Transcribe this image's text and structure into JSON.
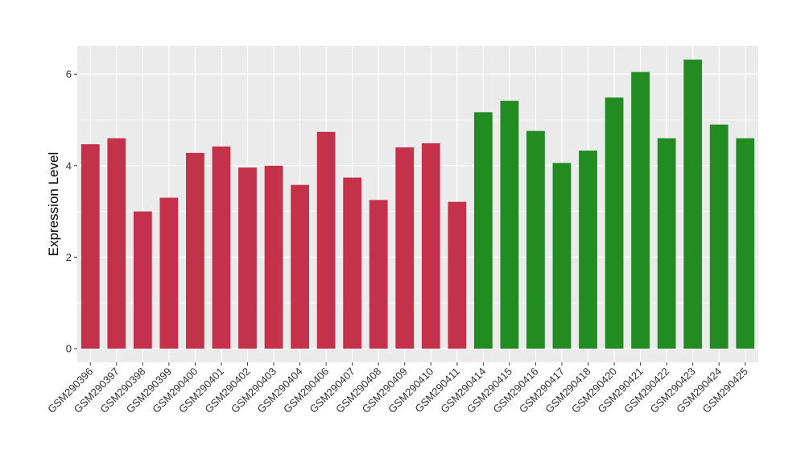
{
  "chart_data": {
    "type": "bar",
    "ylabel": "Expression Level",
    "xlabel": "",
    "ylim": [
      -0.3,
      6.62
    ],
    "yticks": [
      0,
      2,
      4,
      6
    ],
    "grid": true,
    "legend": "none",
    "categories": [
      "GSM290396",
      "GSM290397",
      "GSM290398",
      "GSM290399",
      "GSM290400",
      "GSM290401",
      "GSM290402",
      "GSM290403",
      "GSM290404",
      "GSM290406",
      "GSM290407",
      "GSM290408",
      "GSM290409",
      "GSM290410",
      "GSM290411",
      "GSM290414",
      "GSM290415",
      "GSM290416",
      "GSM290417",
      "GSM290418",
      "GSM290420",
      "GSM290421",
      "GSM290422",
      "GSM290423",
      "GSM290424",
      "GSM290425"
    ],
    "values": [
      4.47,
      4.6,
      3.0,
      3.3,
      4.28,
      4.42,
      3.96,
      4.0,
      3.58,
      4.74,
      3.74,
      3.25,
      4.4,
      4.49,
      3.21,
      5.17,
      5.42,
      4.76,
      4.06,
      4.33,
      5.49,
      6.05,
      4.6,
      6.32,
      4.9,
      4.6
    ],
    "groups": [
      0,
      0,
      0,
      0,
      0,
      0,
      0,
      0,
      0,
      0,
      0,
      0,
      0,
      0,
      0,
      1,
      1,
      1,
      1,
      1,
      1,
      1,
      1,
      1,
      1,
      1
    ],
    "group_colors": [
      "#c3314a",
      "#228b22"
    ],
    "panel_background": "#ebebeb",
    "grid_color": "#ffffff"
  }
}
